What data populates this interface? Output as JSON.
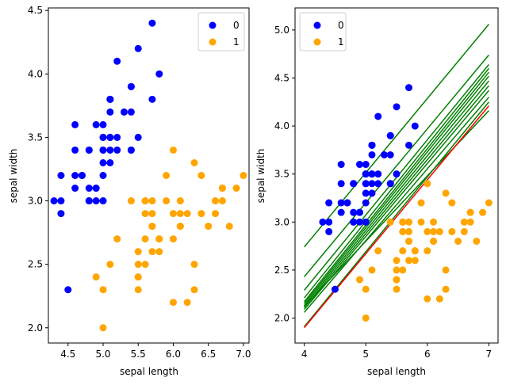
{
  "chart_data": [
    {
      "type": "scatter",
      "xlabel": "sepal length",
      "ylabel": "sepal width",
      "xlim": [
        4.22,
        7.08
      ],
      "ylim": [
        1.88,
        4.52
      ],
      "xticks": [
        "4.5",
        "5.0",
        "5.5",
        "6.0",
        "6.5",
        "7.0"
      ],
      "xtick_values": [
        4.5,
        5.0,
        5.5,
        6.0,
        6.5,
        7.0
      ],
      "yticks": [
        "2.0",
        "2.5",
        "3.0",
        "3.5",
        "4.0",
        "4.5"
      ],
      "ytick_values": [
        2.0,
        2.5,
        3.0,
        3.5,
        4.0,
        4.5
      ],
      "legend_position": "top-right",
      "series": [
        {
          "name": "0",
          "color": "#0000ff",
          "points": [
            [
              5.1,
              3.5
            ],
            [
              4.9,
              3.0
            ],
            [
              4.7,
              3.2
            ],
            [
              4.6,
              3.1
            ],
            [
              5.0,
              3.6
            ],
            [
              5.4,
              3.9
            ],
            [
              4.6,
              3.4
            ],
            [
              5.0,
              3.4
            ],
            [
              4.4,
              2.9
            ],
            [
              4.9,
              3.1
            ],
            [
              5.4,
              3.7
            ],
            [
              4.8,
              3.4
            ],
            [
              4.8,
              3.0
            ],
            [
              4.3,
              3.0
            ],
            [
              5.8,
              4.0
            ],
            [
              5.7,
              4.4
            ],
            [
              5.4,
              3.9
            ],
            [
              5.1,
              3.5
            ],
            [
              5.7,
              3.8
            ],
            [
              5.1,
              3.8
            ],
            [
              5.4,
              3.4
            ],
            [
              5.1,
              3.7
            ],
            [
              4.6,
              3.6
            ],
            [
              5.1,
              3.3
            ],
            [
              4.8,
              3.4
            ],
            [
              5.0,
              3.0
            ],
            [
              5.0,
              3.4
            ],
            [
              5.2,
              3.5
            ],
            [
              5.2,
              3.4
            ],
            [
              4.7,
              3.2
            ],
            [
              4.8,
              3.1
            ],
            [
              5.4,
              3.4
            ],
            [
              5.2,
              4.1
            ],
            [
              5.5,
              4.2
            ],
            [
              4.9,
              3.1
            ],
            [
              5.0,
              3.2
            ],
            [
              5.5,
              3.5
            ],
            [
              4.9,
              3.6
            ],
            [
              4.4,
              3.0
            ],
            [
              5.1,
              3.4
            ],
            [
              5.0,
              3.5
            ],
            [
              4.5,
              2.3
            ],
            [
              4.4,
              3.2
            ],
            [
              5.0,
              3.5
            ],
            [
              5.1,
              3.8
            ],
            [
              4.8,
              3.0
            ],
            [
              5.1,
              3.8
            ],
            [
              4.6,
              3.2
            ],
            [
              5.3,
              3.7
            ],
            [
              5.0,
              3.3
            ]
          ]
        },
        {
          "name": "1",
          "color": "#ffa500",
          "points": [
            [
              7.0,
              3.2
            ],
            [
              6.4,
              3.2
            ],
            [
              6.9,
              3.1
            ],
            [
              5.5,
              2.3
            ],
            [
              6.5,
              2.8
            ],
            [
              5.7,
              2.8
            ],
            [
              6.3,
              3.3
            ],
            [
              4.9,
              2.4
            ],
            [
              6.6,
              2.9
            ],
            [
              5.2,
              2.7
            ],
            [
              5.0,
              2.0
            ],
            [
              5.9,
              3.0
            ],
            [
              6.0,
              2.2
            ],
            [
              6.1,
              2.9
            ],
            [
              5.6,
              2.9
            ],
            [
              6.7,
              3.1
            ],
            [
              5.6,
              3.0
            ],
            [
              5.8,
              2.7
            ],
            [
              6.2,
              2.2
            ],
            [
              5.6,
              2.5
            ],
            [
              5.9,
              3.2
            ],
            [
              6.1,
              2.8
            ],
            [
              6.3,
              2.5
            ],
            [
              6.1,
              2.8
            ],
            [
              6.4,
              2.9
            ],
            [
              6.6,
              3.0
            ],
            [
              6.8,
              2.8
            ],
            [
              6.7,
              3.0
            ],
            [
              6.0,
              2.9
            ],
            [
              5.7,
              2.6
            ],
            [
              5.5,
              2.4
            ],
            [
              5.5,
              2.4
            ],
            [
              5.8,
              2.7
            ],
            [
              6.0,
              2.7
            ],
            [
              5.4,
              3.0
            ],
            [
              6.0,
              3.4
            ],
            [
              6.7,
              3.1
            ],
            [
              6.3,
              2.3
            ],
            [
              5.6,
              3.0
            ],
            [
              5.5,
              2.5
            ],
            [
              5.5,
              2.6
            ],
            [
              6.1,
              3.0
            ],
            [
              5.8,
              2.6
            ],
            [
              5.0,
              2.3
            ],
            [
              5.6,
              2.7
            ],
            [
              5.7,
              3.0
            ],
            [
              5.7,
              2.9
            ],
            [
              6.2,
              2.9
            ],
            [
              5.1,
              2.5
            ],
            [
              5.7,
              2.8
            ]
          ]
        }
      ]
    },
    {
      "type": "scatter",
      "xlabel": "sepal length",
      "ylabel": "sepal width",
      "xlim": [
        3.85,
        7.15
      ],
      "ylim": [
        1.74,
        5.23
      ],
      "xticks": [
        "4",
        "5",
        "6",
        "7"
      ],
      "xtick_values": [
        4,
        5,
        6,
        7
      ],
      "yticks": [
        "2.0",
        "2.5",
        "3.0",
        "3.5",
        "4.0",
        "4.5",
        "5.0"
      ],
      "ytick_values": [
        2.0,
        2.5,
        3.0,
        3.5,
        4.0,
        4.5,
        5.0
      ],
      "legend_position": "top-left",
      "series": [
        {
          "name": "0",
          "color": "#0000ff",
          "points": [
            [
              5.1,
              3.5
            ],
            [
              4.9,
              3.0
            ],
            [
              4.7,
              3.2
            ],
            [
              4.6,
              3.1
            ],
            [
              5.0,
              3.6
            ],
            [
              5.4,
              3.9
            ],
            [
              4.6,
              3.4
            ],
            [
              5.0,
              3.4
            ],
            [
              4.4,
              2.9
            ],
            [
              4.9,
              3.1
            ],
            [
              5.4,
              3.7
            ],
            [
              4.8,
              3.4
            ],
            [
              4.8,
              3.0
            ],
            [
              4.3,
              3.0
            ],
            [
              5.8,
              4.0
            ],
            [
              5.7,
              4.4
            ],
            [
              5.4,
              3.9
            ],
            [
              5.1,
              3.5
            ],
            [
              5.7,
              3.8
            ],
            [
              5.1,
              3.8
            ],
            [
              5.4,
              3.4
            ],
            [
              5.1,
              3.7
            ],
            [
              4.6,
              3.6
            ],
            [
              5.1,
              3.3
            ],
            [
              4.8,
              3.4
            ],
            [
              5.0,
              3.0
            ],
            [
              5.0,
              3.4
            ],
            [
              5.2,
              3.5
            ],
            [
              5.2,
              3.4
            ],
            [
              4.7,
              3.2
            ],
            [
              4.8,
              3.1
            ],
            [
              5.4,
              3.4
            ],
            [
              5.2,
              4.1
            ],
            [
              5.5,
              4.2
            ],
            [
              4.9,
              3.1
            ],
            [
              5.0,
              3.2
            ],
            [
              5.5,
              3.5
            ],
            [
              4.9,
              3.6
            ],
            [
              4.4,
              3.0
            ],
            [
              5.1,
              3.4
            ],
            [
              5.0,
              3.5
            ],
            [
              4.5,
              2.3
            ],
            [
              4.4,
              3.2
            ],
            [
              5.0,
              3.5
            ],
            [
              5.1,
              3.8
            ],
            [
              4.8,
              3.0
            ],
            [
              5.1,
              3.8
            ],
            [
              4.6,
              3.2
            ],
            [
              5.3,
              3.7
            ],
            [
              5.0,
              3.3
            ]
          ]
        },
        {
          "name": "1",
          "color": "#ffa500",
          "points": [
            [
              7.0,
              3.2
            ],
            [
              6.4,
              3.2
            ],
            [
              6.9,
              3.1
            ],
            [
              5.5,
              2.3
            ],
            [
              6.5,
              2.8
            ],
            [
              5.7,
              2.8
            ],
            [
              6.3,
              3.3
            ],
            [
              4.9,
              2.4
            ],
            [
              6.6,
              2.9
            ],
            [
              5.2,
              2.7
            ],
            [
              5.0,
              2.0
            ],
            [
              5.9,
              3.0
            ],
            [
              6.0,
              2.2
            ],
            [
              6.1,
              2.9
            ],
            [
              5.6,
              2.9
            ],
            [
              6.7,
              3.1
            ],
            [
              5.6,
              3.0
            ],
            [
              5.8,
              2.7
            ],
            [
              6.2,
              2.2
            ],
            [
              5.6,
              2.5
            ],
            [
              5.9,
              3.2
            ],
            [
              6.1,
              2.8
            ],
            [
              6.3,
              2.5
            ],
            [
              6.1,
              2.8
            ],
            [
              6.4,
              2.9
            ],
            [
              6.6,
              3.0
            ],
            [
              6.8,
              2.8
            ],
            [
              6.7,
              3.0
            ],
            [
              6.0,
              2.9
            ],
            [
              5.7,
              2.6
            ],
            [
              5.5,
              2.4
            ],
            [
              5.5,
              2.4
            ],
            [
              5.8,
              2.7
            ],
            [
              6.0,
              2.7
            ],
            [
              5.4,
              3.0
            ],
            [
              6.0,
              3.4
            ],
            [
              6.7,
              3.1
            ],
            [
              6.3,
              2.3
            ],
            [
              5.6,
              3.0
            ],
            [
              5.5,
              2.5
            ],
            [
              5.5,
              2.6
            ],
            [
              6.1,
              3.0
            ],
            [
              5.8,
              2.6
            ],
            [
              5.0,
              2.3
            ],
            [
              5.6,
              2.7
            ],
            [
              5.7,
              3.0
            ],
            [
              5.7,
              2.9
            ],
            [
              6.2,
              2.9
            ],
            [
              5.1,
              2.5
            ],
            [
              5.7,
              2.8
            ]
          ]
        }
      ],
      "lines": [
        {
          "color": "#008000",
          "x": [
            4,
            7
          ],
          "y": [
            2.74,
            5.06
          ]
        },
        {
          "color": "#008000",
          "x": [
            4,
            7
          ],
          "y": [
            2.43,
            4.74
          ]
        },
        {
          "color": "#008000",
          "x": [
            4,
            7
          ],
          "y": [
            2.29,
            4.64
          ]
        },
        {
          "color": "#008000",
          "x": [
            4,
            7
          ],
          "y": [
            2.21,
            4.6
          ]
        },
        {
          "color": "#008000",
          "x": [
            4,
            7
          ],
          "y": [
            2.17,
            4.56
          ]
        },
        {
          "color": "#008000",
          "x": [
            4,
            7
          ],
          "y": [
            2.15,
            4.52
          ]
        },
        {
          "color": "#008000",
          "x": [
            4,
            7
          ],
          "y": [
            2.13,
            4.47
          ]
        },
        {
          "color": "#008000",
          "x": [
            4,
            7
          ],
          "y": [
            2.11,
            4.42
          ]
        },
        {
          "color": "#008000",
          "x": [
            4,
            7
          ],
          "y": [
            2.09,
            4.37
          ]
        },
        {
          "color": "#008000",
          "x": [
            4,
            7
          ],
          "y": [
            2.06,
            4.3
          ]
        },
        {
          "color": "#008000",
          "x": [
            4,
            7
          ],
          "y": [
            2.12,
            4.16
          ]
        },
        {
          "color": "#008000",
          "x": [
            4,
            7
          ],
          "y": [
            1.91,
            4.25
          ]
        },
        {
          "color": "#ff0000",
          "x": [
            4,
            7
          ],
          "y": [
            1.9,
            4.21
          ]
        }
      ]
    }
  ]
}
